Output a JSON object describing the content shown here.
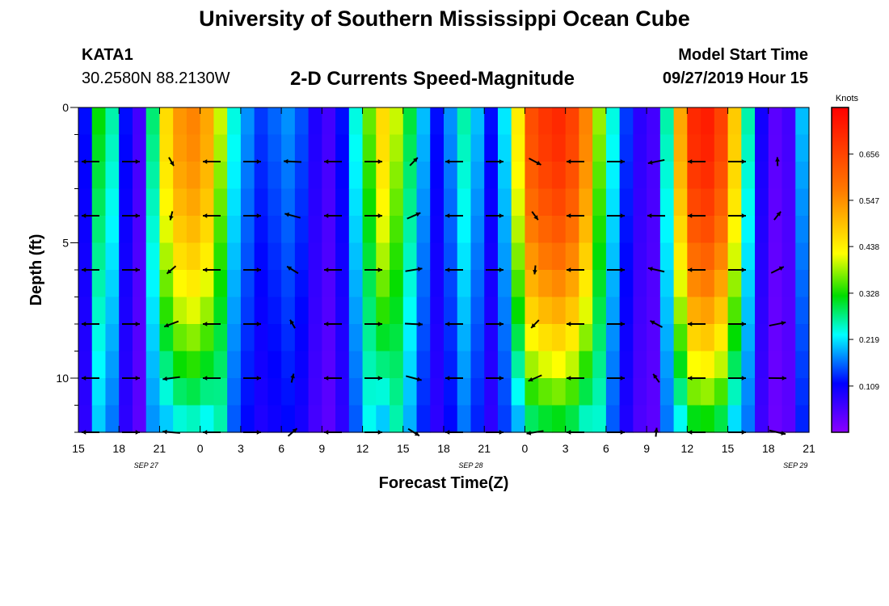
{
  "header": {
    "title_top": "University of Southern Mississippi Ocean Cube",
    "title_bottom": "University of Southern Mississippi Ocean Cube",
    "station_id": "KATA1",
    "coordinates": "30.2580N 88.2130W",
    "subtitle": "2-D Currents Speed-Magnitude",
    "model_start_label": "Model Start Time",
    "model_start_value": "09/27/2019 Hour 15"
  },
  "chart_data": {
    "type": "heatmap",
    "title": "2-D Currents Speed-Magnitude",
    "xlabel": "Forecast Time(Z)",
    "ylabel": "Depth (ft)",
    "x_ticks": [
      "15",
      "18",
      "21",
      "0",
      "3",
      "6",
      "9",
      "12",
      "15",
      "18",
      "21",
      "0",
      "3",
      "6",
      "9",
      "12",
      "15",
      "18",
      "21"
    ],
    "date_labels": [
      {
        "label": "SEP 27",
        "hour_index": 5
      },
      {
        "label": "SEP 28",
        "hour_index": 29
      },
      {
        "label": "SEP 29",
        "hour_index": 53
      }
    ],
    "y_ticks": [
      0,
      5,
      10
    ],
    "ylim": [
      12,
      0
    ],
    "hours": 54,
    "depth_levels": 12,
    "colorbar": {
      "unit": "Knots",
      "ticks": [
        0.109,
        0.219,
        0.328,
        0.438,
        0.547,
        0.656
      ],
      "range": [
        0,
        0.766
      ]
    },
    "surface_speed_profile_knots": [
      0.12,
      0.32,
      0.26,
      0.12,
      0.06,
      0.28,
      0.46,
      0.54,
      0.56,
      0.52,
      0.4,
      0.24,
      0.18,
      0.14,
      0.16,
      0.18,
      0.15,
      0.09,
      0.06,
      0.12,
      0.24,
      0.36,
      0.46,
      0.4,
      0.3,
      0.2,
      0.12,
      0.18,
      0.26,
      0.2,
      0.12,
      0.22,
      0.44,
      0.64,
      0.68,
      0.7,
      0.66,
      0.56,
      0.38,
      0.24,
      0.14,
      0.08,
      0.06,
      0.26,
      0.52,
      0.7,
      0.72,
      0.66,
      0.48,
      0.26,
      0.1,
      0.04,
      0.06,
      0.2
    ]
  }
}
